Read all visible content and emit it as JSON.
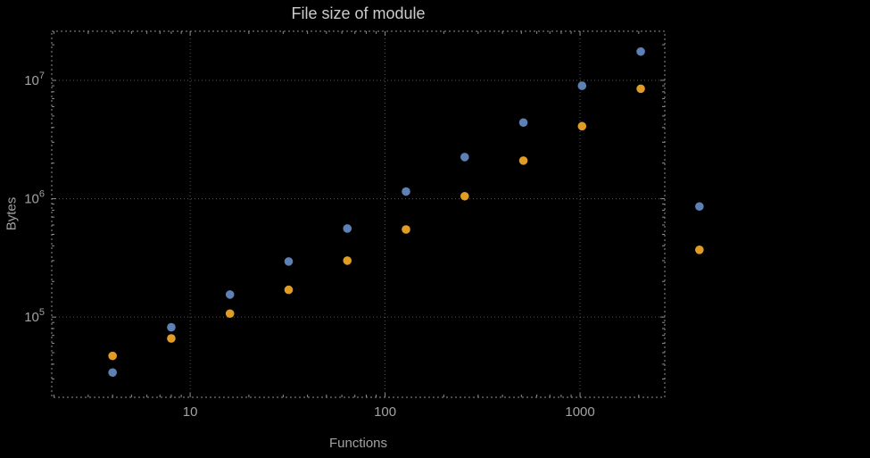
{
  "chart_data": {
    "type": "scatter",
    "title": "File size of module",
    "xlabel": "Functions",
    "ylabel": "Bytes",
    "x_scale": "log",
    "y_scale": "log",
    "grid": true,
    "legend": "none",
    "background": "#000000",
    "frame_xlim": [
      1.95,
      2720
    ],
    "frame_ylim": [
      21000,
      26000000
    ],
    "x_ticks": [
      {
        "value": 10,
        "label": "10"
      },
      {
        "value": 100,
        "label": "100"
      },
      {
        "value": 1000,
        "label": "1000"
      }
    ],
    "y_ticks": [
      {
        "value": 100000,
        "base": "10",
        "exp": "5"
      },
      {
        "value": 1000000,
        "base": "10",
        "exp": "6"
      },
      {
        "value": 10000000,
        "base": "10",
        "exp": "7"
      }
    ],
    "series": [
      {
        "name": "series-blue",
        "color": "#5e81b5",
        "points": [
          [
            4,
            34000
          ],
          [
            8,
            82000
          ],
          [
            16,
            155000
          ],
          [
            32,
            295000
          ],
          [
            64,
            560000
          ],
          [
            128,
            1150000
          ],
          [
            256,
            2250000
          ],
          [
            512,
            4400000
          ],
          [
            1024,
            9000000
          ],
          [
            2048,
            17500000
          ],
          [
            4096,
            860000
          ]
        ]
      },
      {
        "name": "series-orange",
        "color": "#e09c24",
        "points": [
          [
            4,
            47000
          ],
          [
            8,
            66000
          ],
          [
            16,
            107000
          ],
          [
            32,
            170000
          ],
          [
            64,
            300000
          ],
          [
            128,
            550000
          ],
          [
            256,
            1050000
          ],
          [
            512,
            2100000
          ],
          [
            1024,
            4100000
          ],
          [
            2048,
            8500000
          ],
          [
            4096,
            370000
          ]
        ]
      }
    ]
  }
}
